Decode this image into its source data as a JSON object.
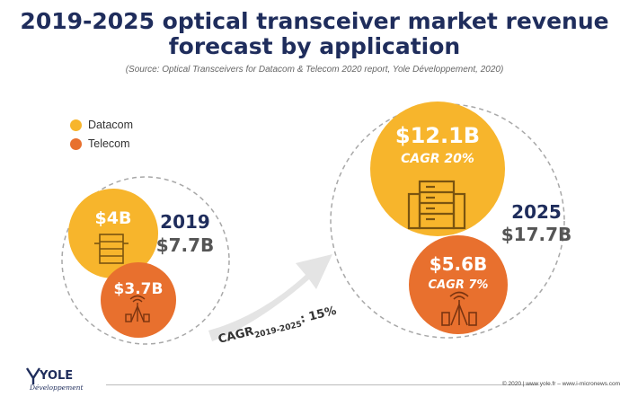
{
  "title_line1": "2019-2025 optical transceiver market revenue",
  "title_line2": "forecast by application",
  "source": "(Source: Optical Transceivers for Datacom & Telecom 2020 report, Yole Développement, 2020)",
  "legend": [
    {
      "label": "Datacom",
      "color": "#f7b52c"
    },
    {
      "label": "Telecom",
      "color": "#e8702e"
    }
  ],
  "colors": {
    "datacom": "#f7b52c",
    "telecom": "#e8702e",
    "year": "#1f2d5c",
    "total": "#555555",
    "arrow": "#e4e4e4"
  },
  "chart_data": {
    "type": "bubble",
    "series_names": [
      "Datacom",
      "Telecom"
    ],
    "groups": [
      {
        "year": "2019",
        "total_label": "$7.7B",
        "total": 7.7,
        "bubbles": [
          {
            "series": "Datacom",
            "value": 4,
            "label": "$4B",
            "cagr": ""
          },
          {
            "series": "Telecom",
            "value": 3.7,
            "label": "$3.7B",
            "cagr": ""
          }
        ]
      },
      {
        "year": "2025",
        "total_label": "$17.7B",
        "total": 17.7,
        "bubbles": [
          {
            "series": "Datacom",
            "value": 12.1,
            "label": "$12.1B",
            "cagr": "CAGR 20%"
          },
          {
            "series": "Telecom",
            "value": 5.6,
            "label": "$5.6B",
            "cagr": "CAGR 7%"
          }
        ]
      }
    ],
    "overall_cagr": {
      "prefix": "CAGR",
      "sub": "2019-2025",
      "suffix": ": 15%"
    }
  },
  "footer": {
    "logo": "YOLE",
    "logo_sub": "Développement",
    "copyright": "© 2020 | www.yole.fr – www.i-micronews.com"
  }
}
